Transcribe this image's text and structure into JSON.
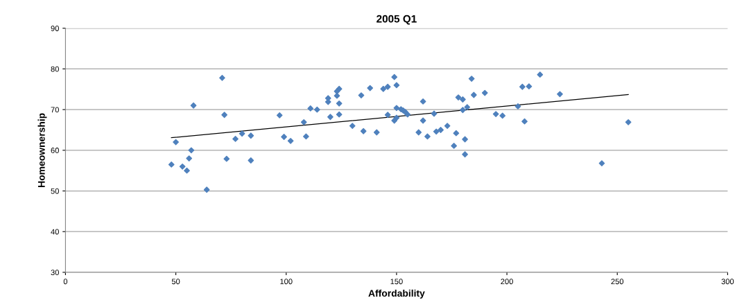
{
  "chart_data": {
    "type": "scatter",
    "title": "2005 Q1",
    "xlabel": "Affordability",
    "ylabel": "Homeownership",
    "xlim": [
      0,
      300
    ],
    "xticks": [
      0,
      50,
      100,
      150,
      200,
      250,
      300
    ],
    "ylim": [
      30,
      90
    ],
    "yticks": [
      30,
      40,
      50,
      60,
      70,
      80,
      90
    ],
    "grid": "y",
    "series": [
      {
        "color": "#4f81bd",
        "marker": "diamond",
        "x": [
          48,
          50,
          53,
          55,
          56,
          57,
          58,
          64,
          71,
          72,
          73,
          77,
          80,
          84,
          84,
          97,
          99,
          102,
          108,
          109,
          111,
          114,
          119,
          119,
          120,
          123,
          123,
          124,
          124,
          124,
          130,
          134,
          135,
          138,
          141,
          144,
          146,
          146,
          149,
          149,
          150,
          150,
          150,
          152,
          153,
          154,
          155,
          160,
          162,
          162,
          164,
          167,
          168,
          170,
          173,
          176,
          177,
          178,
          180,
          180,
          181,
          181,
          182,
          184,
          185,
          190,
          195,
          198,
          205,
          207,
          208,
          210,
          215,
          224,
          243,
          255
        ],
        "values": [
          56.5,
          62,
          56,
          55,
          58,
          60,
          71,
          50.3,
          77.8,
          68.7,
          57.9,
          62.8,
          64.1,
          63.6,
          57.5,
          68.6,
          63.3,
          62.3,
          66.9,
          63.4,
          70.3,
          70,
          71.9,
          72.8,
          68.2,
          73.4,
          74.5,
          75.1,
          71.5,
          68.8,
          66,
          73.5,
          64.7,
          75.3,
          64.4,
          75.1,
          68.7,
          75.6,
          78,
          67.3,
          76,
          70.4,
          68,
          70.1,
          69.8,
          69.4,
          68.8,
          64.4,
          67.3,
          72,
          63.4,
          69,
          64.6,
          65,
          66,
          61.1,
          64.2,
          73,
          69.9,
          72.5,
          59,
          62.7,
          70.6,
          77.6,
          73.6,
          74.1,
          68.9,
          68.5,
          70.8,
          75.6,
          67.1,
          75.7,
          78.6,
          73.8,
          56.8,
          66.9
        ]
      },
      {
        "type": "line",
        "color": "#000000",
        "x": [
          48,
          255
        ],
        "values": [
          63.1,
          73.7
        ]
      }
    ]
  }
}
